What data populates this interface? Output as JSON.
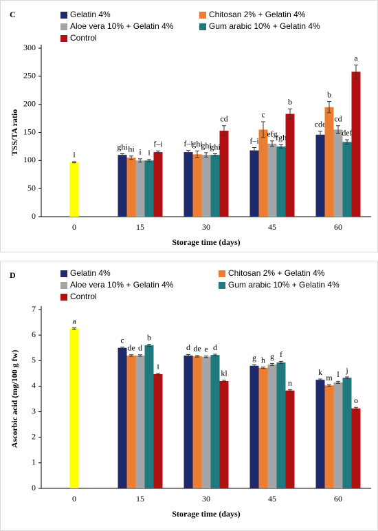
{
  "chart_data": [
    {
      "type": "bar",
      "title": "C",
      "xlabel": "Storage time (days)",
      "ylabel": "TSS/TA ratio",
      "categories": [
        "0",
        "15",
        "30",
        "45",
        "60"
      ],
      "ylim": [
        0,
        300
      ],
      "yticks": [
        0,
        50,
        100,
        150,
        200,
        250,
        300
      ],
      "grid": false,
      "initial_bar": {
        "color": "#ffff00",
        "value": 97,
        "error": 1,
        "value_label": "i"
      },
      "series": [
        {
          "name": "Gelatin 4%",
          "color": "#1f2a6b",
          "values": [
            null,
            110,
            115,
            118,
            146
          ],
          "errors": [
            null,
            2,
            3,
            5,
            6
          ],
          "value_labels": [
            null,
            "ghi",
            "f–i",
            "f–i",
            "cde"
          ]
        },
        {
          "name": "Chitosan 2% + Gelatin 4%",
          "color": "#ed7d31",
          "values": [
            null,
            105,
            111,
            155,
            195
          ],
          "errors": [
            null,
            3,
            6,
            14,
            10
          ],
          "value_labels": [
            null,
            "hi",
            "ghi",
            "c",
            "b"
          ]
        },
        {
          "name": "Aloe vera 10% + Gelatin 4%",
          "color": "#a5a5a5",
          "values": [
            null,
            100,
            110,
            130,
            155
          ],
          "errors": [
            null,
            3,
            4,
            5,
            7
          ],
          "value_labels": [
            null,
            "i",
            "ghi",
            "efg",
            "cd"
          ]
        },
        {
          "name": "Gum arabic 10% + Gelatin 4%",
          "color": "#1f7a80",
          "values": [
            null,
            100,
            110,
            125,
            133
          ],
          "errors": [
            null,
            2,
            2,
            3,
            4
          ],
          "value_labels": [
            null,
            "i",
            "ghi",
            "fgh",
            "def"
          ]
        },
        {
          "name": "Control",
          "color": "#b01010",
          "values": [
            null,
            115,
            153,
            183,
            258
          ],
          "errors": [
            null,
            2,
            9,
            9,
            12
          ],
          "value_labels": [
            null,
            "f–i",
            "cd",
            "b",
            "a"
          ]
        }
      ]
    },
    {
      "type": "bar",
      "title": "D",
      "xlabel": "Storage time (days)",
      "ylabel": "Ascorbic acid (mg/100 g fw)",
      "categories": [
        "0",
        "15",
        "30",
        "45",
        "60"
      ],
      "ylim": [
        0,
        7
      ],
      "yticks": [
        0,
        1,
        2,
        3,
        4,
        5,
        6,
        7
      ],
      "grid": false,
      "initial_bar": {
        "color": "#ffff00",
        "value": 6.25,
        "error": 0.03,
        "value_label": "a"
      },
      "series": [
        {
          "name": "Gelatin 4%",
          "color": "#1f2a6b",
          "values": [
            null,
            5.5,
            5.2,
            4.8,
            4.25
          ],
          "errors": [
            null,
            0.03,
            0.04,
            0.04,
            0.03
          ],
          "value_labels": [
            null,
            "c",
            "d",
            "g",
            "k"
          ]
        },
        {
          "name": "Chitosan 2% + Gelatin 4%",
          "color": "#ed7d31",
          "values": [
            null,
            5.2,
            5.17,
            4.72,
            4.03
          ],
          "errors": [
            null,
            0.03,
            0.03,
            0.03,
            0.03
          ],
          "value_labels": [
            null,
            "de",
            "de",
            "h",
            "m"
          ]
        },
        {
          "name": "Aloe vera 10% + Gelatin 4%",
          "color": "#a5a5a5",
          "values": [
            null,
            5.2,
            5.15,
            4.85,
            4.15
          ],
          "errors": [
            null,
            0.03,
            0.03,
            0.04,
            0.04
          ],
          "value_labels": [
            null,
            "d",
            "e",
            "g",
            "l"
          ]
        },
        {
          "name": "Gum arabic 10% + Gelatin 4%",
          "color": "#1f7a80",
          "values": [
            null,
            5.6,
            5.22,
            4.93,
            4.33
          ],
          "errors": [
            null,
            0.04,
            0.03,
            0.04,
            0.03
          ],
          "value_labels": [
            null,
            "b",
            "d",
            "f",
            "j"
          ]
        },
        {
          "name": "Control",
          "color": "#b01010",
          "values": [
            null,
            4.47,
            4.2,
            3.83,
            3.13
          ],
          "errors": [
            null,
            0.03,
            0.03,
            0.03,
            0.04
          ],
          "value_labels": [
            null,
            "i",
            "kl",
            "n",
            "o"
          ]
        }
      ]
    }
  ]
}
